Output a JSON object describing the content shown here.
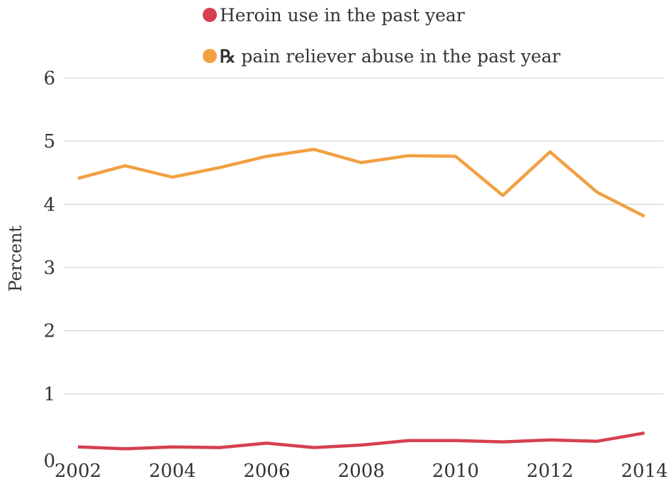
{
  "chart_data": {
    "type": "line",
    "title": "",
    "xlabel": "",
    "ylabel": "Percent",
    "x": [
      2002,
      2003,
      2004,
      2005,
      2006,
      2007,
      2008,
      2009,
      2010,
      2011,
      2012,
      2013,
      2014
    ],
    "xticks": [
      "2002",
      "2004",
      "2006",
      "2008",
      "2010",
      "2012",
      "2014"
    ],
    "yticks": [
      "0",
      "1",
      "2",
      "3",
      "4",
      "5",
      "6"
    ],
    "xlim": [
      2001.7,
      2014.4
    ],
    "ylim": [
      0,
      6
    ],
    "grid": true,
    "legend_placement": "top-center",
    "series": [
      {
        "name": "Heroin use in the past year",
        "color": "#d6404f",
        "values": [
          0.16,
          0.13,
          0.16,
          0.15,
          0.22,
          0.15,
          0.19,
          0.26,
          0.26,
          0.24,
          0.27,
          0.25,
          0.38
        ]
      },
      {
        "name": "pain reliever abuse in the past year",
        "prefix": "℞",
        "color": "#f2a043",
        "values": [
          4.41,
          4.61,
          4.43,
          4.58,
          4.76,
          4.87,
          4.66,
          4.77,
          4.76,
          4.14,
          4.83,
          4.19,
          3.81
        ]
      }
    ]
  }
}
